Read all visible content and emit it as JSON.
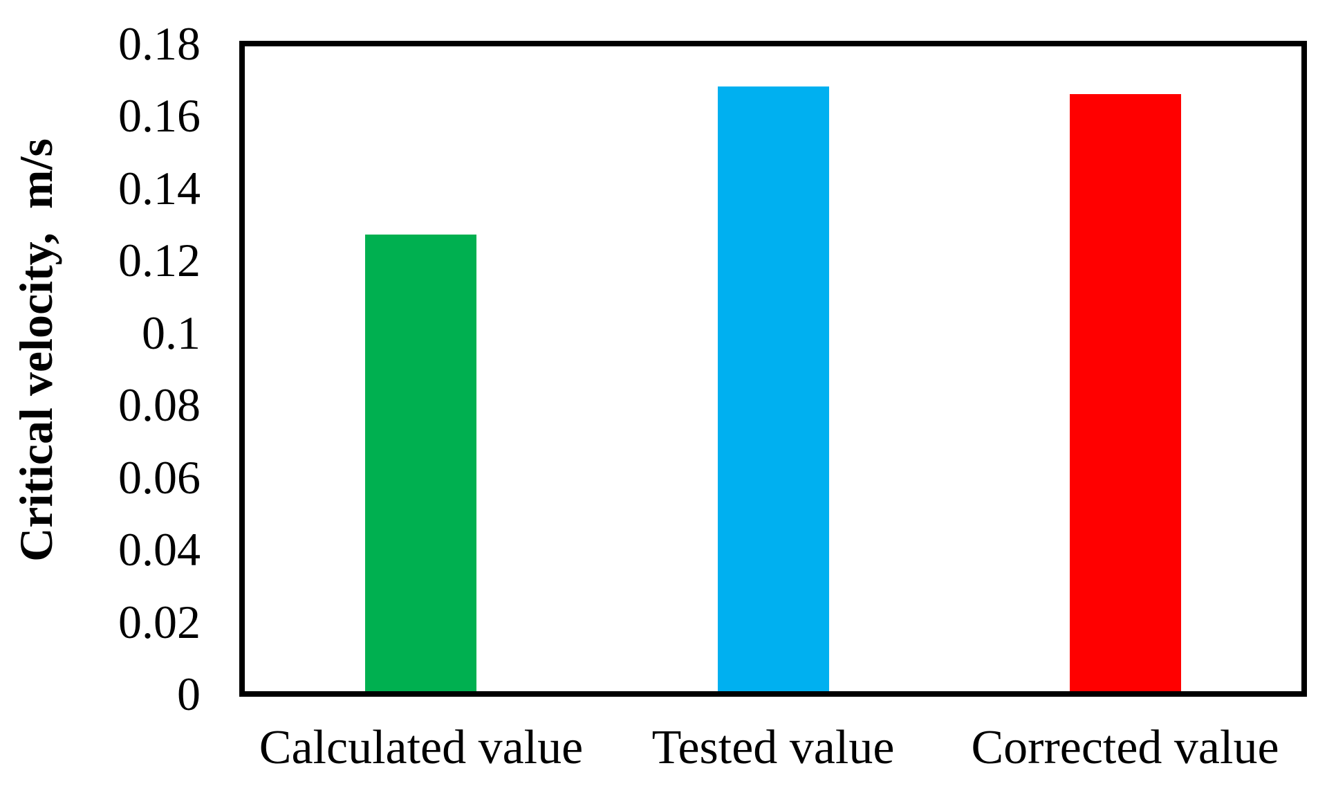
{
  "chart_data": {
    "type": "bar",
    "title": "",
    "xlabel": "",
    "ylabel": "Critical velocity,  m/s",
    "categories": [
      "Calculated value",
      "Tested value",
      "Corrected value"
    ],
    "values": [
      0.127,
      0.168,
      0.166
    ],
    "bar_colors": [
      "#00B050",
      "#00B0F0",
      "#FF0000"
    ],
    "axis_color": "#000000",
    "background_color": "#FFFFFF",
    "ylim": [
      0,
      0.18
    ],
    "yticks": [
      0,
      0.02,
      0.04,
      0.06,
      0.08,
      0.1,
      0.12,
      0.14,
      0.16,
      0.18
    ],
    "ytick_labels": [
      "0",
      "0.02",
      "0.04",
      "0.06",
      "0.08",
      "0.1",
      "0.12",
      "0.14",
      "0.16",
      "0.18"
    ],
    "grid": false,
    "legend": false
  }
}
